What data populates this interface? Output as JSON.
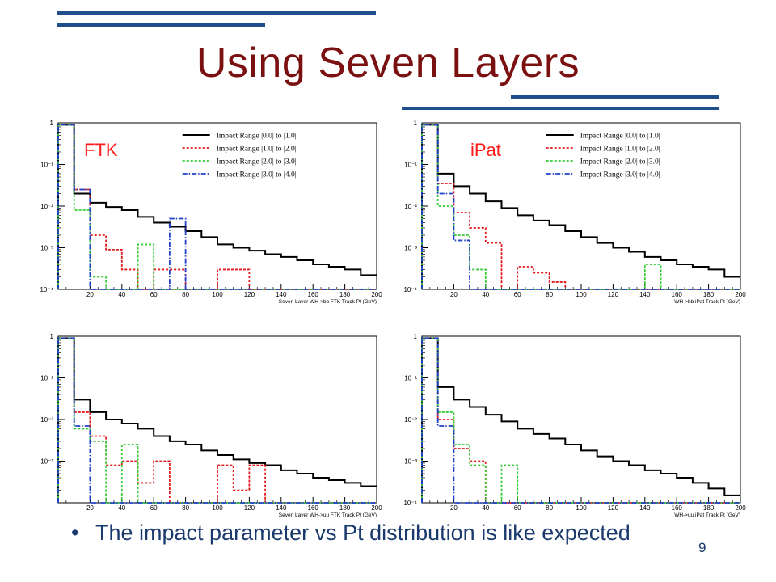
{
  "slide": {
    "title": "Using Seven Layers",
    "bullet_marker": "•",
    "bullet_text": "The impact parameter vs Pt distribution is like expected",
    "page_number": "9",
    "colors": {
      "title": "#7b1010",
      "accent_lines": "#1f4e8c",
      "body_text": "#1a3a6e"
    }
  },
  "chart_data": [
    {
      "type": "line",
      "panel_label": "FTK",
      "xlabel": "Seven Layer WH->bb FTK Track Pt (GeV)",
      "ylabel": "",
      "xlim": [
        0,
        200
      ],
      "ylim": [
        0.0001,
        1
      ],
      "y_scale": "log",
      "x_ticks": [
        "20",
        "40",
        "60",
        "80",
        "100",
        "120",
        "140",
        "160",
        "180",
        "200"
      ],
      "y_ticks": [
        {
          "v": 1,
          "label": "1"
        },
        {
          "v": 0.1,
          "label": "10⁻¹"
        },
        {
          "v": 0.01,
          "label": "10⁻²"
        },
        {
          "v": 0.001,
          "label": "10⁻³"
        },
        {
          "v": 0.0001,
          "label": "10⁻⁴"
        }
      ],
      "legend_position": "top-right",
      "series": [
        {
          "name": "Impact Range |0.0| to |1.0|",
          "color": "#000000",
          "dash": "solid",
          "x": [
            0,
            10,
            20,
            30,
            40,
            50,
            60,
            70,
            80,
            90,
            100,
            110,
            120,
            130,
            140,
            150,
            160,
            170,
            180,
            190
          ],
          "y": [
            0.9,
            0.02,
            0.012,
            0.0095,
            0.008,
            0.0055,
            0.004,
            0.0032,
            0.0025,
            0.0018,
            0.0012,
            0.001,
            0.00085,
            0.0007,
            0.0006,
            0.0005,
            0.0004,
            0.00035,
            0.0003,
            0.00022
          ]
        },
        {
          "name": "Impact Range |1.0| to |2.0|",
          "color": "#e31a1c",
          "dash": "dotted",
          "x": [
            0,
            10,
            20,
            30,
            40,
            50,
            60,
            70,
            80,
            90,
            100,
            110,
            120,
            130,
            140,
            150,
            160,
            170,
            180,
            190
          ],
          "y": [
            0.9,
            0.025,
            0.002,
            0.0009,
            0.0003,
            0.0001,
            0.0003,
            0.0003,
            0.0001,
            0.0001,
            0.0003,
            0.0003,
            0.0001,
            0.0001,
            0.0001,
            0.0001,
            0.0001,
            0.0001,
            0.0001,
            0.0001
          ]
        },
        {
          "name": "Impact Range |2.0| to |3.0|",
          "color": "#33cc33",
          "dash": "dotted",
          "x": [
            0,
            10,
            20,
            30,
            40,
            50,
            60,
            70,
            80,
            90,
            100,
            110,
            120,
            130,
            140,
            150,
            160,
            170,
            180,
            190
          ],
          "y": [
            0.9,
            0.008,
            0.0002,
            0.0001,
            0.0001,
            0.0012,
            0.0001,
            0.0001,
            0.0001,
            0.0001,
            0.0001,
            0.0001,
            0.0001,
            0.0001,
            0.0001,
            0.0001,
            0.0001,
            0.0001,
            0.0001,
            0.0001
          ]
        },
        {
          "name": "Impact Range |3.0| to |4.0|",
          "color": "#2040c8",
          "dash": "dashdot",
          "x": [
            0,
            10,
            20,
            30,
            40,
            50,
            60,
            70,
            80,
            90,
            100,
            110,
            120,
            130,
            140,
            150,
            160,
            170,
            180,
            190
          ],
          "y": [
            0.9,
            0.025,
            0.0001,
            0.0001,
            0.0001,
            0.0001,
            0.0001,
            0.005,
            0.0001,
            0.0001,
            0.0001,
            0.0001,
            0.0001,
            0.0001,
            0.0001,
            0.0001,
            0.0001,
            0.0001,
            0.0001,
            0.0001
          ]
        }
      ]
    },
    {
      "type": "line",
      "panel_label": "iPat",
      "xlabel": "WH->bb iPat Track Pt (GeV)",
      "ylabel": "",
      "xlim": [
        0,
        200
      ],
      "ylim": [
        0.0001,
        1
      ],
      "y_scale": "log",
      "x_ticks": [
        "20",
        "40",
        "60",
        "80",
        "100",
        "120",
        "140",
        "160",
        "180",
        "200"
      ],
      "y_ticks": [
        {
          "v": 1,
          "label": "1"
        },
        {
          "v": 0.1,
          "label": "10⁻¹"
        },
        {
          "v": 0.01,
          "label": "10⁻²"
        },
        {
          "v": 0.001,
          "label": "10⁻³"
        },
        {
          "v": 0.0001,
          "label": "10⁻⁴"
        }
      ],
      "legend_position": "top-right",
      "series": [
        {
          "name": "Impact Range |0.0| to |1.0|",
          "color": "#000000",
          "dash": "solid",
          "x": [
            0,
            10,
            20,
            30,
            40,
            50,
            60,
            70,
            80,
            90,
            100,
            110,
            120,
            130,
            140,
            150,
            160,
            170,
            180,
            190
          ],
          "y": [
            0.9,
            0.06,
            0.03,
            0.02,
            0.013,
            0.009,
            0.006,
            0.0045,
            0.0035,
            0.0025,
            0.0018,
            0.0013,
            0.001,
            0.0008,
            0.0006,
            0.0005,
            0.0004,
            0.00035,
            0.0003,
            0.0002
          ]
        },
        {
          "name": "Impact Range |1.0| to |2.0|",
          "color": "#e31a1c",
          "dash": "dotted",
          "x": [
            0,
            10,
            20,
            30,
            40,
            50,
            60,
            70,
            80,
            90,
            100,
            110,
            120,
            130,
            140,
            150,
            160,
            170,
            180,
            190
          ],
          "y": [
            0.9,
            0.035,
            0.007,
            0.003,
            0.0013,
            0.0001,
            0.00035,
            0.00025,
            0.00015,
            0.0001,
            0.0001,
            0.0001,
            0.0001,
            0.0001,
            0.0001,
            0.0001,
            0.0001,
            0.0001,
            0.0001,
            0.0001
          ]
        },
        {
          "name": "Impact Range |2.0| to |3.0|",
          "color": "#33cc33",
          "dash": "dotted",
          "x": [
            0,
            10,
            20,
            30,
            40,
            50,
            60,
            70,
            80,
            90,
            100,
            110,
            120,
            130,
            140,
            150,
            160,
            170,
            180,
            190
          ],
          "y": [
            0.9,
            0.01,
            0.002,
            0.0003,
            0.0001,
            0.0001,
            0.0001,
            0.0001,
            0.0001,
            0.0001,
            0.0001,
            0.0001,
            0.0001,
            0.0001,
            0.0004,
            0.0001,
            0.0001,
            0.0001,
            0.0001,
            0.0001
          ]
        },
        {
          "name": "Impact Range |3.0| to |4.0|",
          "color": "#2040c8",
          "dash": "dashdot",
          "x": [
            0,
            10,
            20,
            30,
            40,
            50,
            60,
            70,
            80,
            90,
            100,
            110,
            120,
            130,
            140,
            150,
            160,
            170,
            180,
            190
          ],
          "y": [
            0.9,
            0.02,
            0.0015,
            0.0001,
            0.0001,
            0.0001,
            0.0001,
            0.0001,
            0.0001,
            0.0001,
            0.0001,
            0.0001,
            0.0001,
            0.0001,
            0.0001,
            0.0001,
            0.0001,
            0.0001,
            0.0001,
            0.0001
          ]
        }
      ]
    },
    {
      "type": "line",
      "panel_label": "",
      "xlabel": "Seven Layer WH->uu FTK Track Pt (GeV)",
      "ylabel": "",
      "xlim": [
        0,
        200
      ],
      "ylim": [
        0.0001,
        1
      ],
      "y_scale": "log",
      "x_ticks": [
        "20",
        "40",
        "60",
        "80",
        "100",
        "120",
        "140",
        "160",
        "180",
        "200"
      ],
      "y_ticks": [
        {
          "v": 1,
          "label": "1"
        },
        {
          "v": 0.1,
          "label": "10⁻¹"
        },
        {
          "v": 0.01,
          "label": "10⁻²"
        },
        {
          "v": 0.001,
          "label": "10⁻³"
        }
      ],
      "legend_position": "",
      "series": [
        {
          "name": "",
          "color": "#000000",
          "dash": "solid",
          "x": [
            0,
            10,
            20,
            30,
            40,
            50,
            60,
            70,
            80,
            90,
            100,
            110,
            120,
            130,
            140,
            150,
            160,
            170,
            180,
            190
          ],
          "y": [
            0.9,
            0.03,
            0.015,
            0.01,
            0.008,
            0.006,
            0.004,
            0.003,
            0.0025,
            0.0018,
            0.0014,
            0.0011,
            0.0009,
            0.0008,
            0.0006,
            0.0005,
            0.0004,
            0.00035,
            0.0003,
            0.00025
          ]
        },
        {
          "name": "",
          "color": "#e31a1c",
          "dash": "dotted",
          "x": [
            0,
            10,
            20,
            30,
            40,
            50,
            60,
            70,
            80,
            90,
            100,
            110,
            120,
            130,
            140,
            150,
            160,
            170,
            180,
            190
          ],
          "y": [
            0.9,
            0.015,
            0.004,
            0.0008,
            0.001,
            0.0003,
            0.001,
            0.0001,
            0.0001,
            0.0001,
            0.0008,
            0.0002,
            0.0008,
            0.0001,
            0.0001,
            0.0001,
            0.0001,
            0.0001,
            0.0001,
            0.0001
          ]
        },
        {
          "name": "",
          "color": "#33cc33",
          "dash": "dotted",
          "x": [
            0,
            10,
            20,
            30,
            40,
            50,
            60,
            70,
            80,
            90,
            100,
            110,
            120,
            130,
            140,
            150,
            160,
            170,
            180,
            190
          ],
          "y": [
            0.9,
            0.006,
            0.003,
            0.0001,
            0.0025,
            0.0001,
            0.0001,
            0.0001,
            0.0001,
            0.0001,
            0.0001,
            0.0001,
            0.0001,
            0.0001,
            0.0001,
            0.0001,
            0.0001,
            0.0001,
            0.0001,
            0.0001
          ]
        },
        {
          "name": "",
          "color": "#2040c8",
          "dash": "dashdot",
          "x": [
            0,
            10,
            20,
            30,
            40,
            50,
            60,
            70,
            80,
            90,
            100,
            110,
            120,
            130,
            140,
            150,
            160,
            170,
            180,
            190
          ],
          "y": [
            0.9,
            0.007,
            0.0001,
            0.0001,
            0.0001,
            0.0001,
            0.0001,
            0.0001,
            0.0001,
            0.0001,
            0.0001,
            0.0001,
            0.0001,
            0.0001,
            0.0001,
            0.0001,
            0.0001,
            0.0001,
            0.0001,
            0.0001
          ]
        }
      ]
    },
    {
      "type": "line",
      "panel_label": "",
      "xlabel": "WH->uu iPat Track Pt (GeV)",
      "ylabel": "",
      "xlim": [
        0,
        200
      ],
      "ylim": [
        0.0001,
        1
      ],
      "y_scale": "log",
      "x_ticks": [
        "20",
        "40",
        "60",
        "80",
        "100",
        "120",
        "140",
        "160",
        "180",
        "200"
      ],
      "y_ticks": [
        {
          "v": 1,
          "label": "1"
        },
        {
          "v": 0.1,
          "label": "10⁻¹"
        },
        {
          "v": 0.01,
          "label": "10⁻²"
        },
        {
          "v": 0.001,
          "label": "10⁻³"
        },
        {
          "v": 0.0001,
          "label": "10⁻⁴"
        }
      ],
      "legend_position": "",
      "series": [
        {
          "name": "",
          "color": "#000000",
          "dash": "solid",
          "x": [
            0,
            10,
            20,
            30,
            40,
            50,
            60,
            70,
            80,
            90,
            100,
            110,
            120,
            130,
            140,
            150,
            160,
            170,
            180,
            190
          ],
          "y": [
            0.9,
            0.06,
            0.03,
            0.02,
            0.013,
            0.009,
            0.006,
            0.0045,
            0.0035,
            0.0025,
            0.0018,
            0.0013,
            0.001,
            0.0008,
            0.0006,
            0.0005,
            0.0004,
            0.0003,
            0.00022,
            0.00015
          ]
        },
        {
          "name": "",
          "color": "#e31a1c",
          "dash": "dotted",
          "x": [
            0,
            10,
            20,
            30,
            40,
            50,
            60,
            70,
            80,
            90,
            100,
            110,
            120,
            130,
            140,
            150,
            160,
            170,
            180,
            190
          ],
          "y": [
            0.9,
            0.01,
            0.002,
            0.001,
            0.0001,
            0.0001,
            0.0001,
            0.0001,
            0.0001,
            0.0001,
            0.0001,
            0.0001,
            0.0001,
            0.0001,
            0.0001,
            0.0001,
            0.0001,
            0.0001,
            0.0001,
            0.0001
          ]
        },
        {
          "name": "",
          "color": "#33cc33",
          "dash": "dotted",
          "x": [
            0,
            10,
            20,
            30,
            40,
            50,
            60,
            70,
            80,
            90,
            100,
            110,
            120,
            130,
            140,
            150,
            160,
            170,
            180,
            190
          ],
          "y": [
            0.9,
            0.015,
            0.0025,
            0.0008,
            0.0001,
            0.0008,
            0.0001,
            0.0001,
            0.0001,
            0.0001,
            0.0001,
            0.0001,
            0.0001,
            0.0001,
            0.0001,
            0.0001,
            0.0001,
            0.0001,
            0.0001,
            0.0001
          ]
        },
        {
          "name": "",
          "color": "#2040c8",
          "dash": "dashdot",
          "x": [
            0,
            10,
            20,
            30,
            40,
            50,
            60,
            70,
            80,
            90,
            100,
            110,
            120,
            130,
            140,
            150,
            160,
            170,
            180,
            190
          ],
          "y": [
            0.9,
            0.007,
            0.0001,
            0.0001,
            0.0001,
            0.0001,
            0.0001,
            0.0001,
            0.0001,
            0.0001,
            0.0001,
            0.0001,
            0.0001,
            0.0001,
            0.0001,
            0.0001,
            0.0001,
            0.0001,
            0.0001,
            0.0001
          ]
        }
      ]
    }
  ]
}
